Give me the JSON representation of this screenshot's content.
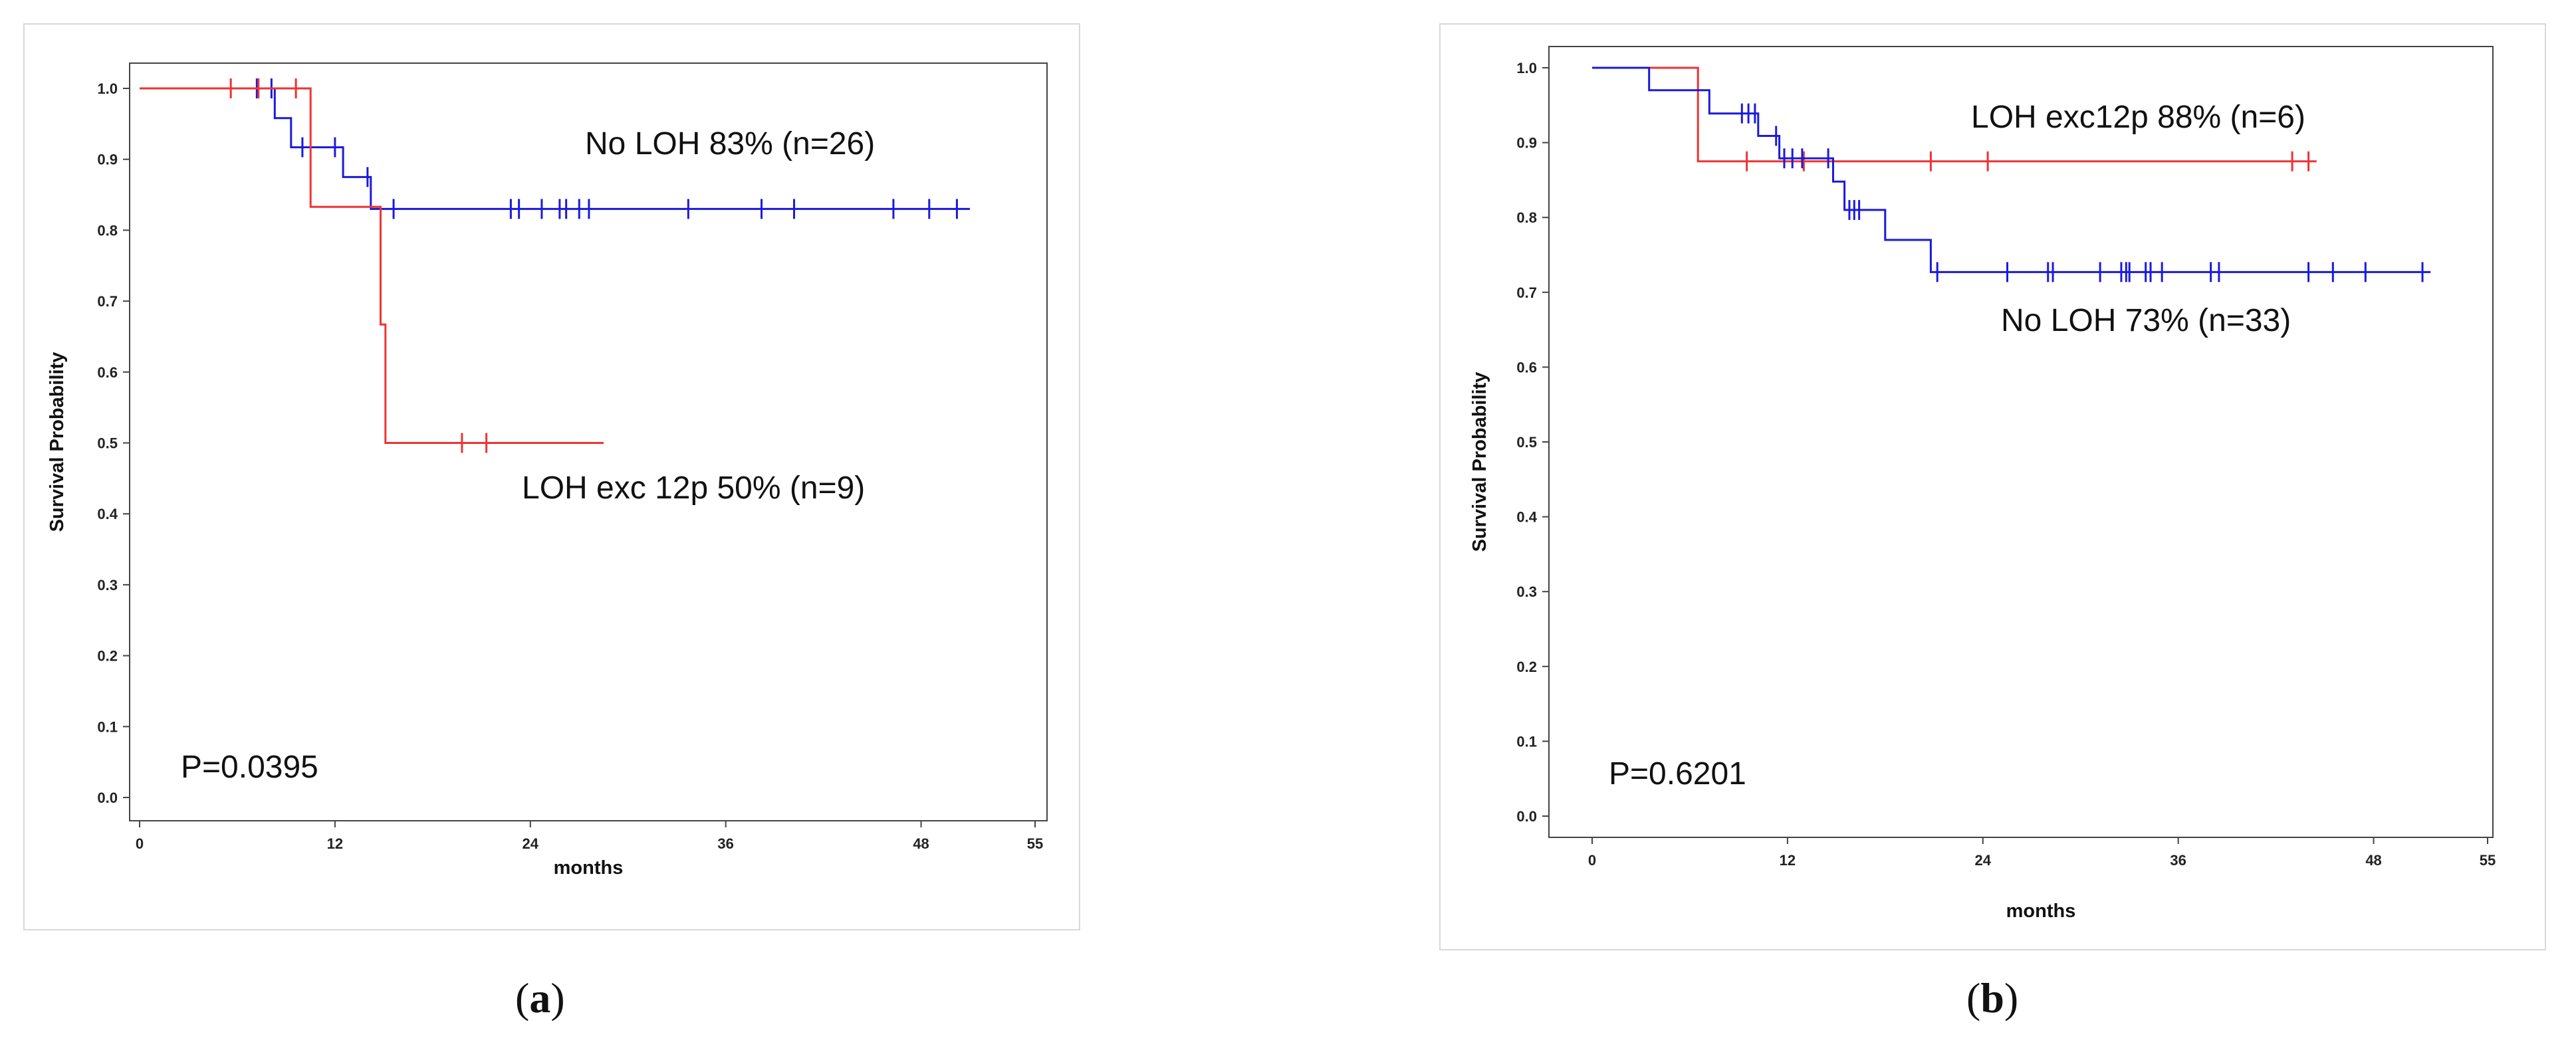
{
  "chart_data": [
    {
      "type": "line",
      "panel_label": "a",
      "xlabel": "months",
      "ylabel": "Survival Probability",
      "x_ticks": [
        0,
        12,
        24,
        36,
        48,
        55
      ],
      "y_ticks": [
        "0.0",
        "0.1",
        "0.2",
        "0.3",
        "0.4",
        "0.5",
        "0.6",
        "0.7",
        "0.8",
        "0.9",
        "1.0"
      ],
      "xlim": [
        0,
        55
      ],
      "ylim": [
        0,
        1
      ],
      "p_value": "P=0.0395",
      "series": [
        {
          "name": "No LOH 83% (n=26)",
          "color": "#1a1adc",
          "steps": [
            [
              0,
              1.0
            ],
            [
              8.3,
              1.0
            ],
            [
              8.3,
              0.958
            ],
            [
              9.3,
              0.958
            ],
            [
              9.3,
              0.917
            ],
            [
              12.5,
              0.917
            ],
            [
              12.5,
              0.875
            ],
            [
              14.2,
              0.875
            ],
            [
              14.2,
              0.83
            ],
            [
              51,
              0.83
            ]
          ],
          "censor_x": [
            7.2,
            8.1,
            12.0,
            10.0,
            14.0,
            15.6,
            22.8,
            23.3,
            24.7,
            25.8,
            26.2,
            27.0,
            27.6,
            33.7,
            38.2,
            40.2,
            46.3,
            48.5,
            50.2
          ]
        },
        {
          "name": "LOH exc 12p 50% (n=9)",
          "color": "#ee3333",
          "steps": [
            [
              0,
              1.0
            ],
            [
              10.5,
              1.0
            ],
            [
              10.5,
              0.833
            ],
            [
              14.8,
              0.833
            ],
            [
              14.8,
              0.667
            ],
            [
              15.1,
              0.667
            ],
            [
              15.1,
              0.5
            ],
            [
              28.5,
              0.5
            ]
          ],
          "censor_x": [
            5.6,
            7.3,
            9.6,
            19.8,
            21.3
          ]
        }
      ],
      "annotations": [
        "No LOH 83% (n=26)",
        "LOH exc 12p 50% (n=9)"
      ]
    },
    {
      "type": "line",
      "panel_label": "b",
      "xlabel": "months",
      "ylabel": "Survival Probability",
      "x_ticks": [
        0,
        12,
        24,
        36,
        48,
        55
      ],
      "y_ticks": [
        "0.0",
        "0.1",
        "0.2",
        "0.3",
        "0.4",
        "0.5",
        "0.6",
        "0.7",
        "0.8",
        "0.9",
        "1.0"
      ],
      "xlim": [
        0,
        55
      ],
      "ylim": [
        0,
        1
      ],
      "p_value": "P=0.6201",
      "series": [
        {
          "name": "LOH exc12p 88% (n=6)",
          "color": "#ee3333",
          "steps": [
            [
              0,
              1.0
            ],
            [
              6.5,
              1.0
            ],
            [
              6.5,
              0.875
            ],
            [
              44.5,
              0.875
            ]
          ],
          "censor_x": [
            9.5,
            13.0,
            20.8,
            24.3,
            43.0,
            44.0
          ]
        },
        {
          "name": "No LOH 73% (n=33)",
          "color": "#1a1adc",
          "steps": [
            [
              0,
              1.0
            ],
            [
              3.5,
              1.0
            ],
            [
              3.5,
              0.97
            ],
            [
              7.2,
              0.97
            ],
            [
              7.2,
              0.939
            ],
            [
              10.2,
              0.939
            ],
            [
              10.2,
              0.909
            ],
            [
              11.5,
              0.909
            ],
            [
              11.5,
              0.879
            ],
            [
              14.8,
              0.879
            ],
            [
              14.8,
              0.848
            ],
            [
              15.5,
              0.848
            ],
            [
              15.5,
              0.81
            ],
            [
              18.0,
              0.81
            ],
            [
              18.0,
              0.77
            ],
            [
              20.8,
              0.77
            ],
            [
              20.8,
              0.727
            ],
            [
              51.5,
              0.727
            ]
          ],
          "censor_x": [
            9.2,
            9.6,
            10.0,
            11.3,
            11.8,
            12.3,
            12.9,
            14.5,
            15.8,
            16.1,
            16.4,
            21.2,
            25.5,
            28.0,
            28.3,
            31.2,
            32.5,
            32.8,
            33.0,
            34.0,
            34.3,
            35.0,
            38.0,
            38.5,
            44.0,
            45.5,
            47.5,
            51.0
          ]
        }
      ],
      "annotations": [
        "LOH exc12p 88% (n=6)",
        "No LOH 73% (n=33)"
      ]
    }
  ]
}
